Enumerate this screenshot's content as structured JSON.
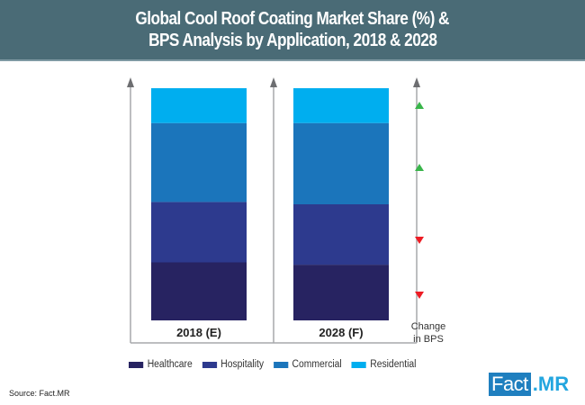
{
  "header": {
    "title_line1": "Global Cool Roof Coating Market Share (%) &",
    "title_line2": "BPS Analysis by Application, 2018 & 2028"
  },
  "chart_data": {
    "type": "bar",
    "stacked": true,
    "title": "Global Cool Roof Coating Market Share (%) & BPS Analysis by Application, 2018 & 2028",
    "categories": [
      "2018 (E)",
      "2028 (F)"
    ],
    "series": [
      {
        "name": "Healthcare",
        "color": "#272361",
        "values": [
          25,
          24
        ]
      },
      {
        "name": "Hospitality",
        "color": "#2d3a8e",
        "values": [
          26,
          26
        ]
      },
      {
        "name": "Commercial",
        "color": "#1b75bb",
        "values": [
          34,
          35
        ]
      },
      {
        "name": "Residential",
        "color": "#00aeef",
        "values": [
          15,
          15
        ]
      }
    ],
    "ylim": [
      0,
      100
    ],
    "bps_change": {
      "label_line1": "Change",
      "label_line2": "in BPS",
      "indicators": [
        {
          "series": "Residential",
          "direction": "up",
          "color": "#39b54a"
        },
        {
          "series": "Commercial",
          "direction": "up",
          "color": "#39b54a"
        },
        {
          "series": "Hospitality",
          "direction": "down",
          "color": "#ed1c24"
        },
        {
          "series": "Healthcare",
          "direction": "down",
          "color": "#ed1c24"
        }
      ]
    },
    "legend_position": "bottom"
  },
  "footer": {
    "source": "Source: Fact.MR",
    "logo_part1": "Fact",
    "logo_part2": ".MR"
  }
}
